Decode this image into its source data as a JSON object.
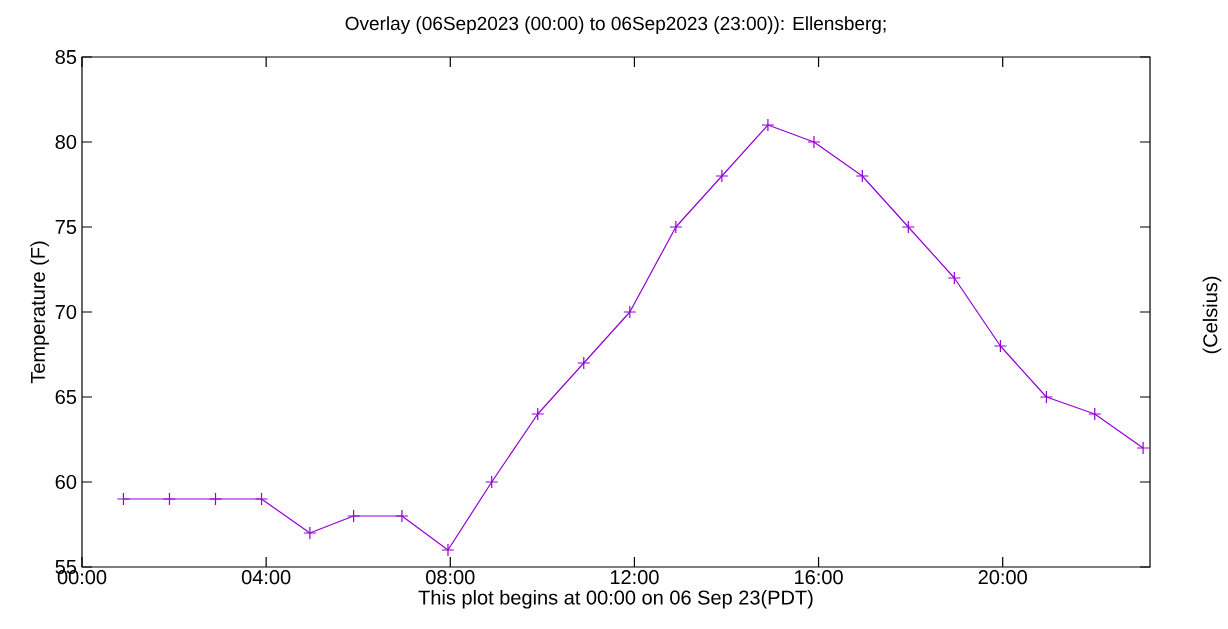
{
  "chart_data": {
    "type": "line",
    "title": "Overlay (06Sep2023 (00:00) to 06Sep2023 (23:00)): Ellensberg;",
    "xlabel": "This plot begins at 00:00 on 06 Sep 23(PDT)",
    "ylabel": "Temperature (F)",
    "y2label": "(Celsius)",
    "x": [
      0.9,
      1.9,
      2.9,
      3.9,
      4.95,
      5.9,
      6.95,
      7.95,
      8.9,
      9.9,
      10.9,
      11.9,
      12.9,
      13.9,
      14.9,
      15.9,
      16.95,
      17.95,
      18.95,
      19.95,
      20.95,
      22.0,
      23.05
    ],
    "series": [
      {
        "color": "#9400d3",
        "values": [
          59,
          59,
          59,
          59,
          57,
          58,
          58,
          56,
          60,
          64,
          67,
          70,
          75,
          78,
          81,
          80,
          78,
          75,
          72,
          68,
          65,
          64,
          62
        ]
      }
    ],
    "xlim": [
      0,
      23.2
    ],
    "xticks": [
      {
        "value": 0,
        "label": "00:00"
      },
      {
        "value": 4,
        "label": "04:00"
      },
      {
        "value": 8,
        "label": "08:00"
      },
      {
        "value": 12,
        "label": "12:00"
      },
      {
        "value": 16,
        "label": "16:00"
      },
      {
        "value": 20,
        "label": "20:00"
      }
    ],
    "ylim": [
      55,
      85
    ],
    "yticks": [
      55,
      60,
      65,
      70,
      75,
      80,
      85
    ],
    "marker": "cross",
    "line_style": "solid",
    "grid": false
  }
}
